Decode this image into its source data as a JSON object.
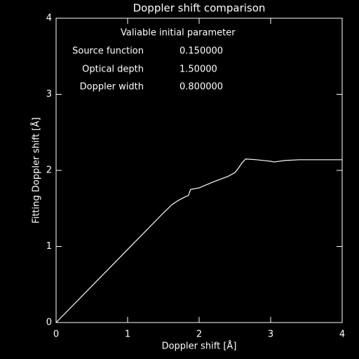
{
  "chart_data": {
    "type": "line",
    "title": "Doppler shift comparison",
    "xlabel": "Doppler shift [Å]",
    "ylabel": "Fitting Doppler shift [Å]",
    "annotations": {
      "heading": "Valiable initial parameter",
      "rows": [
        {
          "label": "Source function",
          "value": "0.150000"
        },
        {
          "label": "Optical depth",
          "value": "1.50000"
        },
        {
          "label": "Doppler width",
          "value": "0.800000"
        }
      ]
    },
    "x": [
      0,
      0.5,
      1.0,
      1.5,
      1.62,
      1.7,
      1.8,
      1.85,
      1.88,
      2.0,
      2.2,
      2.4,
      2.5,
      2.55,
      2.6,
      2.65,
      2.8,
      3.0,
      3.05,
      3.2,
      3.4,
      4.0
    ],
    "series": [
      {
        "color": "#ffffff",
        "values": [
          0,
          0.48,
          0.96,
          1.44,
          1.55,
          1.6,
          1.65,
          1.67,
          1.75,
          1.77,
          1.85,
          1.92,
          1.97,
          2.03,
          2.1,
          2.15,
          2.14,
          2.12,
          2.11,
          2.13,
          2.14,
          2.14
        ]
      }
    ],
    "xlim": [
      0,
      4
    ],
    "ylim": [
      0,
      4
    ],
    "xticks": [
      0,
      1,
      2,
      3,
      4
    ],
    "yticks": [
      0,
      1,
      2,
      3,
      4
    ]
  }
}
